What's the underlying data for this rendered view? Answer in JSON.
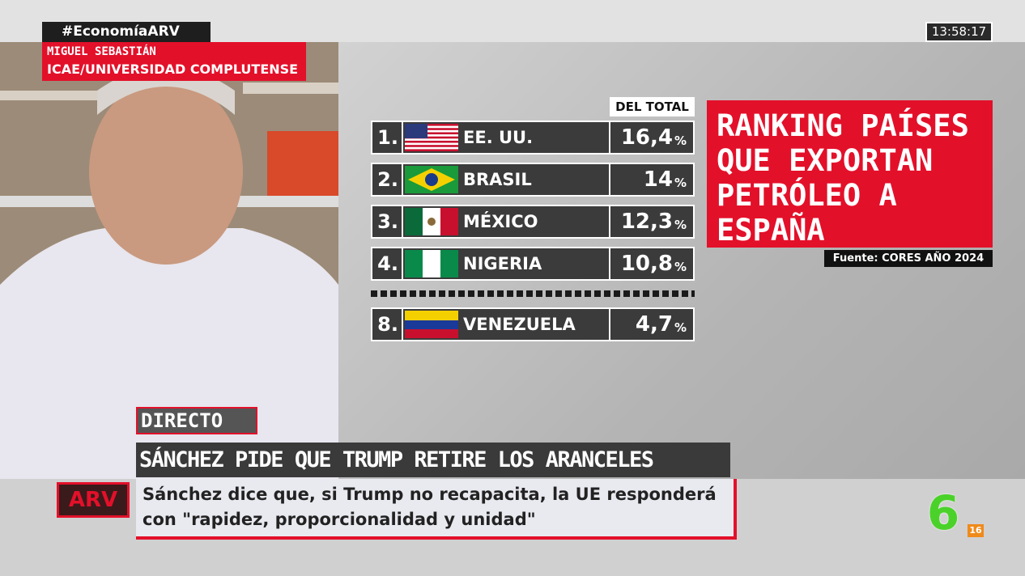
{
  "top": {
    "hashtag": "#EconomíaARV",
    "speaker": "MIGUEL SEBASTIÁN",
    "affiliation": "ICAE/UNIVERSIDAD COMPLUTENSE",
    "clock": "13:58:17"
  },
  "ranking": {
    "column_header": "DEL TOTAL",
    "unit": "%",
    "rows": [
      {
        "rank": "1.",
        "country": "EE. UU.",
        "share": "16,4"
      },
      {
        "rank": "2.",
        "country": "BRASIL",
        "share": "14"
      },
      {
        "rank": "3.",
        "country": "MÉXICO",
        "share": "12,3"
      },
      {
        "rank": "4.",
        "country": "NIGERIA",
        "share": "10,8"
      },
      {
        "rank": "8.",
        "country": "VENEZUELA",
        "share": "4,7"
      }
    ]
  },
  "title_lines": [
    "RANKING PAÍSES",
    "QUE EXPORTAN",
    "PETRÓLEO A",
    "ESPAÑA"
  ],
  "source": "Fuente: CORES AÑO 2024",
  "lower_third": {
    "tag": "DIRECTO",
    "headline": "SÁNCHEZ PIDE QUE TRUMP RETIRE LOS ARANCELES",
    "subtitle_lines": [
      "Sánchez dice que, si Trump no recapacita, la UE responderá",
      "con \"rapidez, proporcionalidad y unidad\""
    ]
  },
  "logos": {
    "program": "ARV",
    "channel": "6",
    "rating": "16"
  }
}
